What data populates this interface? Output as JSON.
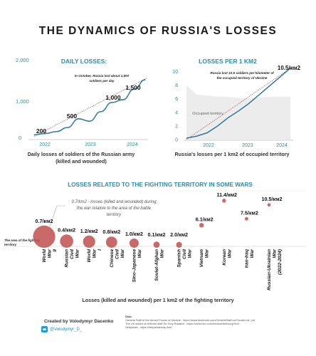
{
  "title": "THE DYNAMICS OF RUSSIA'S LOSSES",
  "colors": {
    "teal": "#2a8db0",
    "navy": "#14344f",
    "dot": "#c0504d",
    "gray_fill": "#ececec",
    "trend": "#8a2f2f"
  },
  "daily_losses": {
    "title": "DAILY LOSSES:",
    "annotation": "In October, Russia lost about 1,500 soldiers per day",
    "caption_line1": "Daily losses of soldiers of the Russian army",
    "caption_line2": "(killed and wounded)",
    "y_ticks": [
      "0",
      "1,000",
      "2,000"
    ],
    "x_ticks": [
      "2022",
      "2023",
      "2024"
    ],
    "labels": [
      "200",
      "500",
      "1,000",
      "1,500"
    ]
  },
  "losses_per_km2": {
    "title": "LOSSES PER 1 KM2",
    "annotation": "Russia lost 10.5 soldiers per kilometer of the occupied territory of Ukraine",
    "occupied_label": "Occupied territory",
    "value_label": "10.5/км2",
    "caption": "Russia's losses per 1 km2 of occupied territory",
    "y_ticks": [
      "0",
      "2",
      "4",
      "6",
      "8",
      "10"
    ],
    "x_ticks": [
      "2022",
      "2023",
      "2024"
    ]
  },
  "wars": {
    "title": "LOSSES RELATED TO THE FIGHTING TERRITORY IN SOME WARS",
    "note": "0.7/km2 - losses (killed and wounded) during the war relative to the area of the battle territory",
    "side_note": "The area of the fighting territory",
    "caption": "Losses (killed and wounded) per 1 km2 of the fighting territory"
  },
  "chart_data": [
    {
      "type": "line",
      "title": "DAILY LOSSES:",
      "x": [
        "2022-04",
        "2022-07",
        "2022-10",
        "2023-01",
        "2023-04",
        "2023-07",
        "2023-10",
        "2024-01",
        "2024-04",
        "2024-07",
        "2024-10"
      ],
      "series": [
        {
          "values": [
            120,
            150,
            200,
            300,
            520,
            460,
            700,
            930,
            1000,
            1260,
            1500
          ]
        }
      ],
      "ylim": [
        0,
        2000
      ]
    },
    {
      "type": "area",
      "title": "LOSSES PER 1 KM2",
      "x": [
        "2022-03",
        "2022-06",
        "2022-09",
        "2022-12",
        "2023-03",
        "2023-06",
        "2023-09",
        "2023-12",
        "2024-03",
        "2024-06",
        "2024-10"
      ],
      "series": [
        {
          "name": "Occupied territory",
          "values": [
            8.0,
            6.6,
            6.5,
            6.3,
            6.3,
            6.1,
            6.1,
            6.2,
            6.3,
            6.3,
            6.3
          ]
        },
        {
          "values": [
            0.2,
            0.5,
            1.0,
            2.0,
            3.2,
            4.2,
            5.3,
            6.6,
            7.9,
            9.2,
            10.5
          ]
        }
      ],
      "ylim": [
        0,
        11
      ]
    },
    {
      "type": "scatter",
      "title": "LOSSES RELATED TO THE FIGHTING TERRITORY IN SOME WARS",
      "categories": [
        "World War II",
        "Russian Civil War",
        "World War I",
        "Chinese Civil War",
        "Sino-Japanese War",
        "Soviet-Afghan War",
        "Spanish Civil War",
        "Vietnam War",
        "Korean War",
        "Iran-Iraq War",
        "Russian-Ukrainian War (2022-2024)"
      ],
      "values": [
        0.7,
        0.4,
        1.2,
        0.8,
        1.0,
        0.1,
        2.0,
        6.1,
        11.4,
        7.5,
        10.5
      ],
      "labels": [
        "0.7/км2",
        "0.4/км2",
        "1.2/км2",
        "0.8/км2",
        "1.0/км2",
        "0.1/км2",
        "2.0/км2",
        "6.1/км2",
        "11.4/км2",
        "7.5/км2",
        "10.5/км2"
      ],
      "area_size": [
        1.0,
        0.55,
        0.5,
        0.45,
        0.35,
        0.2,
        0.18,
        0.12,
        0.08,
        0.06,
        0.05
      ]
    }
  ],
  "footer": {
    "author": "Created by Volodymyr Dacenko",
    "twitter": "@Volodymyr_D_",
    "data_label": "Data:",
    "sources": [
      "General Staff of the Armed Forces of Ukraine - https://www.facebook.com/GeneralStaff.ua/?locale=uk_UA",
      "The UK stated of defence staff Sir Tony Radakin - https://www.bbc.com/news/articles/cqv9n2/..",
      "Deepstate - https://deepstatemap.live/"
    ]
  }
}
